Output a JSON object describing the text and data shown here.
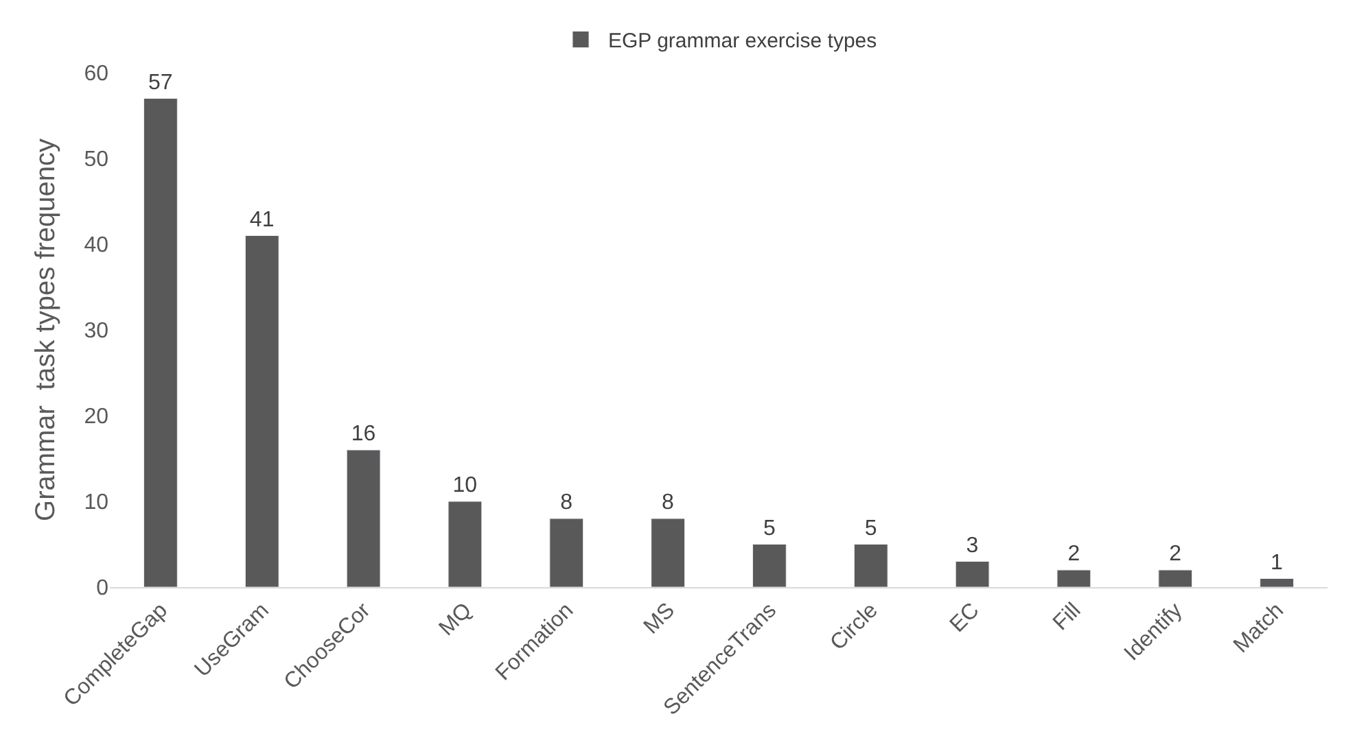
{
  "chart_data": {
    "type": "bar",
    "categories": [
      "CompleteGap",
      "UseGram",
      "ChooseCor",
      "MQ",
      "Formation",
      "MS",
      "SentenceTrans",
      "Circle",
      "EC",
      "Fill",
      "Identify",
      "Match"
    ],
    "series": [
      {
        "name": "EGP grammar exercise types",
        "color": "#595959",
        "values": [
          57,
          41,
          16,
          10,
          8,
          8,
          5,
          5,
          3,
          2,
          2,
          1
        ]
      }
    ],
    "ylabel": "Grammar  task types frequency",
    "ylim": [
      0,
      60
    ],
    "yticks": [
      0,
      10,
      20,
      30,
      40,
      50,
      60
    ],
    "data_labels": true,
    "grid": false,
    "legend": "top"
  }
}
